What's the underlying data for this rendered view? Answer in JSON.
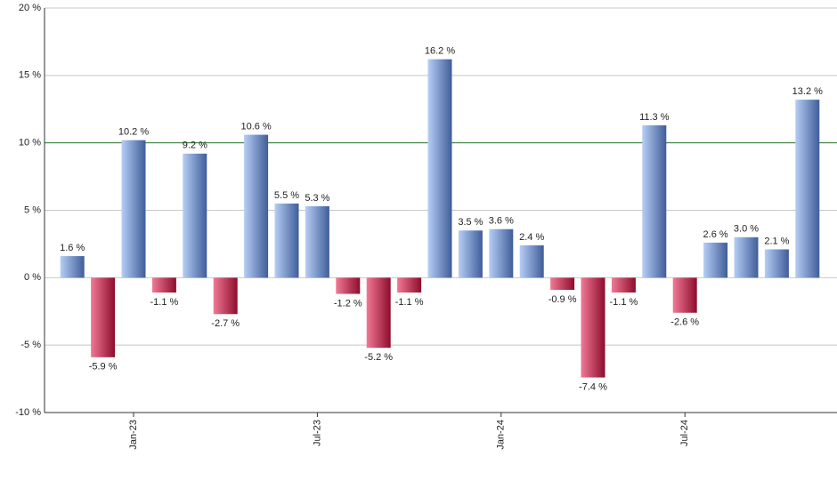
{
  "chart_data": {
    "type": "bar",
    "categories": [
      null,
      null,
      "Jan-23",
      null,
      null,
      null,
      null,
      null,
      "Jul-23",
      null,
      null,
      null,
      null,
      null,
      "Jan-24",
      null,
      null,
      null,
      null,
      null,
      "Jul-24",
      null,
      null,
      null,
      null
    ],
    "values": [
      1.6,
      -5.9,
      10.2,
      -1.1,
      9.2,
      -2.7,
      10.6,
      5.5,
      5.3,
      -1.2,
      -5.2,
      -1.1,
      16.2,
      3.5,
      3.6,
      2.4,
      -0.9,
      -7.4,
      -1.1,
      11.3,
      -2.6,
      2.6,
      3.0,
      2.1,
      13.2
    ],
    "value_labels": [
      "1.6 %",
      "-5.9 %",
      "10.2 %",
      "-1.1 %",
      "9.2 %",
      "-2.7 %",
      "10.6 %",
      "5.5 %",
      "5.3 %",
      "-1.2 %",
      "-5.2 %",
      "-1.1 %",
      "16.2 %",
      "3.5 %",
      "3.6 %",
      "2.4 %",
      "-0.9 %",
      "-7.4 %",
      "-1.1 %",
      "11.3 %",
      "-2.6 %",
      "2.6 %",
      "3.0 %",
      "2.1 %",
      "13.2 %"
    ],
    "positive_gradient": [
      "#b6cef5",
      "#3f5d99"
    ],
    "negative_gradient": [
      "#f07a96",
      "#8e0c2c"
    ],
    "ylim": [
      -10,
      20
    ],
    "yticks": [
      {
        "value": -10,
        "label": "-10 %"
      },
      {
        "value": -5,
        "label": "-5 %"
      },
      {
        "value": 0,
        "label": "0 %"
      },
      {
        "value": 5,
        "label": "5 %"
      },
      {
        "value": 10,
        "label": "10 %"
      },
      {
        "value": 15,
        "label": "15 %"
      },
      {
        "value": 20,
        "label": "20 %"
      }
    ],
    "grid": true,
    "reference_line": 10,
    "reference_color": "#2e7d32"
  }
}
